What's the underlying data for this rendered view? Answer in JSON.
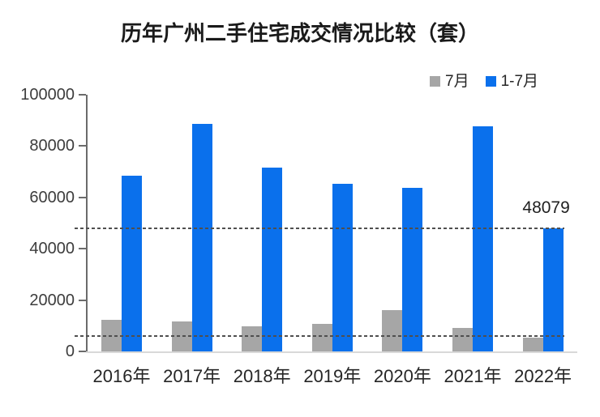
{
  "title": "历年广州二手住宅成交情况比较（套）",
  "chart_data": {
    "type": "bar",
    "title": "历年广州二手住宅成交情况比较（套）",
    "categories": [
      "2016年",
      "2017年",
      "2018年",
      "2019年",
      "2020年",
      "2021年",
      "2022年"
    ],
    "series": [
      {
        "name": "7月",
        "color": "#a6a6a6",
        "values": [
          12300,
          11800,
          9900,
          10700,
          16000,
          9200,
          5500
        ]
      },
      {
        "name": "1-7月",
        "color": "#0a70ec",
        "values": [
          68400,
          88500,
          71500,
          65400,
          63800,
          87700,
          48079
        ]
      }
    ],
    "xlabel": "",
    "ylabel": "",
    "ylim": [
      0,
      100000
    ],
    "yticks": [
      0,
      20000,
      40000,
      60000,
      80000,
      100000
    ],
    "grid": false,
    "legend_position": "top-right",
    "reference_lines": [
      {
        "value": 48079,
        "style": "dashed"
      },
      {
        "value": 6000,
        "style": "dashed"
      }
    ],
    "annotations": [
      {
        "text": "48079",
        "value": 48079,
        "category": "2022年",
        "series": "1-7月"
      }
    ]
  },
  "colors": {
    "bar_july": "#a6a6a6",
    "bar_jan_jul": "#0a70ec",
    "dashed_line": "#4f4f4f",
    "axis": "#6b6b6b",
    "baseline": "#d9d9d9",
    "title_text": "#1a1a1a"
  }
}
